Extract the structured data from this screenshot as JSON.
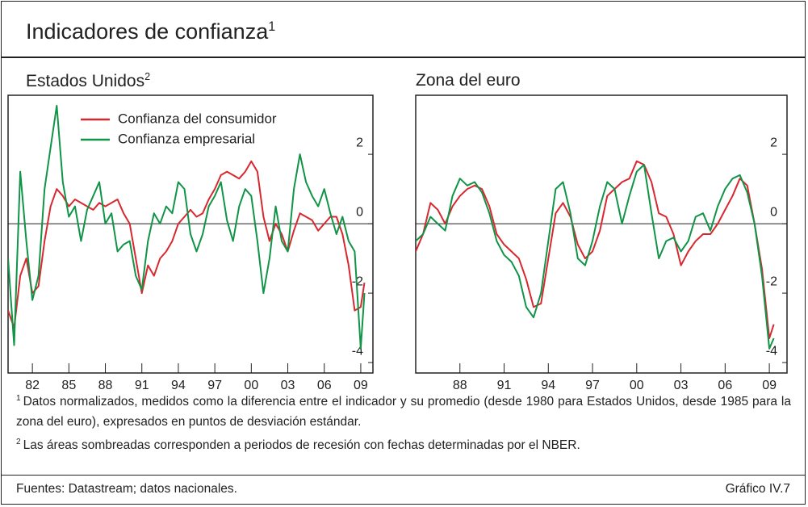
{
  "title": "Indicadores de confianza",
  "title_note": "1",
  "footnotes": [
    {
      "mark": "1",
      "text": "Datos normalizados, medidos como la diferencia entre el indicador y su promedio (desde 1980 para Estados Unidos, desde 1985 para la zona del euro), expresados en puntos de desviación estándar."
    },
    {
      "mark": "2",
      "text": "Las áreas sombreadas corresponden a periodos de recesión con fechas determinadas por el NBER."
    }
  ],
  "sources": "Fuentes: Datastream; datos nacionales.",
  "chart_id": "Gráfico IV.7",
  "chart_data": [
    {
      "type": "line",
      "title": "Estados Unidos",
      "title_note": "2",
      "legend": "upper left",
      "xlim": [
        1980,
        2010
      ],
      "ylim": [
        -4.3,
        3.7
      ],
      "xticks": [
        {
          "value": 1982,
          "label": "82"
        },
        {
          "value": 1985,
          "label": "85"
        },
        {
          "value": 1988,
          "label": "88"
        },
        {
          "value": 1991,
          "label": "91"
        },
        {
          "value": 1994,
          "label": "94"
        },
        {
          "value": 1997,
          "label": "97"
        },
        {
          "value": 2000,
          "label": "00"
        },
        {
          "value": 2003,
          "label": "03"
        },
        {
          "value": 2006,
          "label": "06"
        },
        {
          "value": 2009,
          "label": "09"
        }
      ],
      "yticks": [
        2,
        0,
        -2,
        -4
      ],
      "x": [
        1980,
        1980.5,
        1981,
        1981.5,
        1982,
        1982.5,
        1983,
        1983.5,
        1984,
        1984.5,
        1985,
        1985.5,
        1986,
        1986.5,
        1987,
        1987.5,
        1988,
        1988.5,
        1989,
        1989.5,
        1990,
        1990.5,
        1991,
        1991.5,
        1992,
        1992.5,
        1993,
        1993.5,
        1994,
        1994.5,
        1995,
        1995.5,
        1996,
        1996.5,
        1997,
        1997.5,
        1998,
        1998.5,
        1999,
        1999.5,
        2000,
        2000.5,
        2001,
        2001.5,
        2002,
        2002.5,
        2003,
        2003.5,
        2004,
        2004.5,
        2005,
        2005.5,
        2006,
        2006.5,
        2007,
        2007.5,
        2008,
        2008.5,
        2009,
        2009.3
      ],
      "series": [
        {
          "name": "Confianza del consumidor",
          "color": "#d7282f",
          "values": [
            -2.5,
            -3,
            -1.5,
            -1,
            -2,
            -1.8,
            -0.5,
            0.5,
            1,
            0.8,
            0.5,
            0.7,
            0.6,
            0.5,
            0.4,
            0.6,
            0.5,
            0.6,
            0.7,
            0.3,
            0,
            -1,
            -2,
            -1.2,
            -1.5,
            -1,
            -0.8,
            -0.5,
            0,
            0.2,
            0.4,
            0.2,
            0.3,
            0.7,
            1,
            1.4,
            1.5,
            1.4,
            1.3,
            1.5,
            1.8,
            1.5,
            0.2,
            -0.5,
            0,
            -0.3,
            -0.8,
            -0.2,
            0.3,
            0.2,
            0.1,
            -0.2,
            0,
            0.2,
            0.2,
            -0.3,
            -1.2,
            -2.5,
            -2.4,
            -1.7
          ]
        },
        {
          "name": "Confianza empresarial",
          "color": "#109447",
          "values": [
            -1,
            -3.5,
            1.5,
            -0.5,
            -2.2,
            -1.5,
            1,
            2.2,
            3.4,
            1.2,
            0.2,
            0.5,
            -0.5,
            0.4,
            0.8,
            1.2,
            0,
            0.3,
            -0.8,
            -0.6,
            -0.5,
            -1.5,
            -1.9,
            -0.5,
            0.3,
            0,
            0.5,
            0.3,
            1.2,
            1.0,
            -0.3,
            -0.8,
            -0.3,
            0.5,
            0.8,
            1.2,
            0.1,
            -0.5,
            0.5,
            1.0,
            0.8,
            -0.5,
            -2.0,
            -1.0,
            0.5,
            -0.5,
            -0.8,
            1.0,
            2.0,
            1.2,
            0.8,
            0.5,
            1.0,
            0.3,
            -0.3,
            0.2,
            -0.5,
            -0.8,
            -3.6,
            -2.0
          ]
        }
      ]
    },
    {
      "type": "line",
      "title": "Zona del euro",
      "xlim": [
        1985,
        2010.2
      ],
      "ylim": [
        -4.3,
        3.7
      ],
      "xticks": [
        {
          "value": 1988,
          "label": "88"
        },
        {
          "value": 1991,
          "label": "91"
        },
        {
          "value": 1994,
          "label": "94"
        },
        {
          "value": 1997,
          "label": "97"
        },
        {
          "value": 2000,
          "label": "00"
        },
        {
          "value": 2003,
          "label": "03"
        },
        {
          "value": 2006,
          "label": "06"
        },
        {
          "value": 2009,
          "label": "09"
        }
      ],
      "yticks": [
        2,
        0,
        -2,
        -4
      ],
      "x": [
        1985,
        1985.5,
        1986,
        1986.5,
        1987,
        1987.5,
        1988,
        1988.5,
        1989,
        1989.5,
        1990,
        1990.5,
        1991,
        1991.5,
        1992,
        1992.5,
        1993,
        1993.5,
        1994,
        1994.5,
        1995,
        1995.5,
        1996,
        1996.5,
        1997,
        1997.5,
        1998,
        1998.5,
        1999,
        1999.5,
        2000,
        2000.5,
        2001,
        2001.5,
        2002,
        2002.5,
        2003,
        2003.5,
        2004,
        2004.5,
        2005,
        2005.5,
        2006,
        2006.5,
        2007,
        2007.5,
        2008,
        2008.5,
        2009,
        2009.3
      ],
      "series": [
        {
          "name": "Confianza del consumidor",
          "color": "#d7282f",
          "values": [
            -0.8,
            -0.3,
            0.6,
            0.4,
            0,
            0.5,
            0.8,
            1.0,
            1.1,
            1.0,
            0.5,
            -0.3,
            -0.6,
            -0.8,
            -1.0,
            -1.6,
            -2.4,
            -2.3,
            -1.0,
            0.3,
            0.6,
            0.2,
            -0.6,
            -1.0,
            -0.8,
            -0.2,
            0.8,
            1.0,
            1.2,
            1.3,
            1.8,
            1.7,
            1.2,
            0.3,
            0.2,
            -0.3,
            -1.2,
            -0.8,
            -0.5,
            -0.3,
            -0.3,
            0.0,
            0.4,
            0.8,
            1.3,
            1.1,
            0.0,
            -1.3,
            -3.3,
            -2.9
          ]
        },
        {
          "name": "Confianza empresarial",
          "color": "#109447",
          "values": [
            -0.5,
            -0.3,
            0.2,
            0.0,
            -0.2,
            0.8,
            1.3,
            1.1,
            1.2,
            0.9,
            0.3,
            -0.5,
            -0.9,
            -1.1,
            -1.5,
            -2.4,
            -2.7,
            -2.0,
            -0.5,
            1.0,
            1.2,
            0.3,
            -1.0,
            -1.2,
            -0.5,
            0.5,
            1.2,
            1.0,
            0.0,
            0.8,
            1.5,
            1.7,
            0.3,
            -1.0,
            -0.5,
            -0.4,
            -0.8,
            -0.5,
            0.2,
            0.3,
            -0.2,
            0.5,
            1.0,
            1.3,
            1.4,
            0.9,
            0.0,
            -1.5,
            -3.6,
            -3.3
          ]
        }
      ]
    }
  ]
}
